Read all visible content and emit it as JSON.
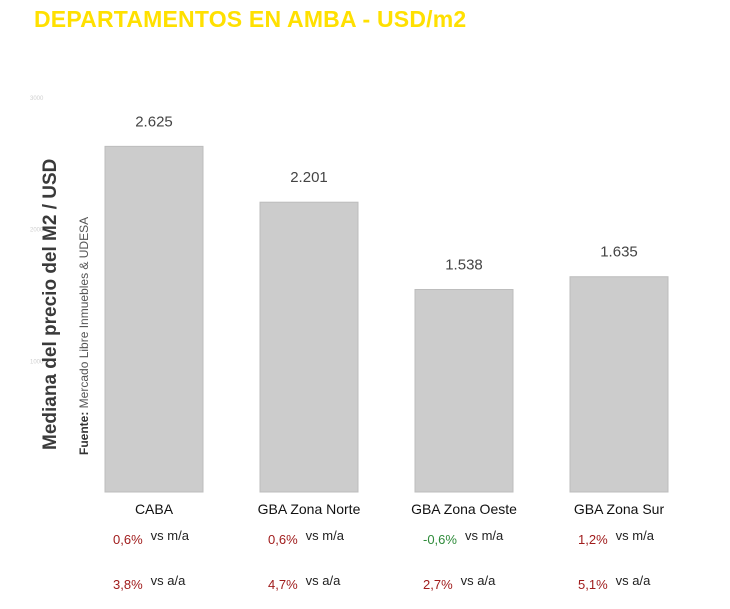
{
  "title": "DEPARTAMENTOS EN AMBA - USD/m2",
  "source_prefix": "Fuente:",
  "source_text": "Mercado Libre Inmuebles & UDESA",
  "colors": {
    "title": "#ffe000",
    "bar": "#cccccc",
    "negative": "#2e8b3a",
    "positive": "#a01c1c"
  },
  "chart_data": {
    "type": "bar",
    "title": "DEPARTAMENTOS EN AMBA - USD/m2",
    "ylabel": "Mediana del precio del M2 / USD",
    "xlabel": "",
    "categories": [
      "CABA",
      "GBA Zona Norte",
      "GBA Zona Oeste",
      "GBA Zona Sur"
    ],
    "values": [
      2625,
      2201,
      1538,
      1635
    ],
    "value_labels": [
      "2.625",
      "2.201",
      "1.538",
      "1.635"
    ],
    "yticks": [
      1000,
      2000,
      3000
    ],
    "ylim": [
      0,
      3000
    ],
    "grid": false,
    "legend": "none"
  },
  "stats": [
    {
      "mom": "0,6%",
      "mom_label": "vs m/a",
      "yoy": "3,8%",
      "yoy_label": "vs a/a",
      "mom_sign": "positive"
    },
    {
      "mom": "0,6%",
      "mom_label": "vs m/a",
      "yoy": "4,7%",
      "yoy_label": "vs a/a",
      "mom_sign": "positive"
    },
    {
      "mom": "-0,6%",
      "mom_label": "vs m/a",
      "yoy": "2,7%",
      "yoy_label": "vs a/a",
      "mom_sign": "negative"
    },
    {
      "mom": "1,2%",
      "mom_label": "vs m/a",
      "yoy": "5,1%",
      "yoy_label": "vs a/a",
      "mom_sign": "positive"
    }
  ]
}
